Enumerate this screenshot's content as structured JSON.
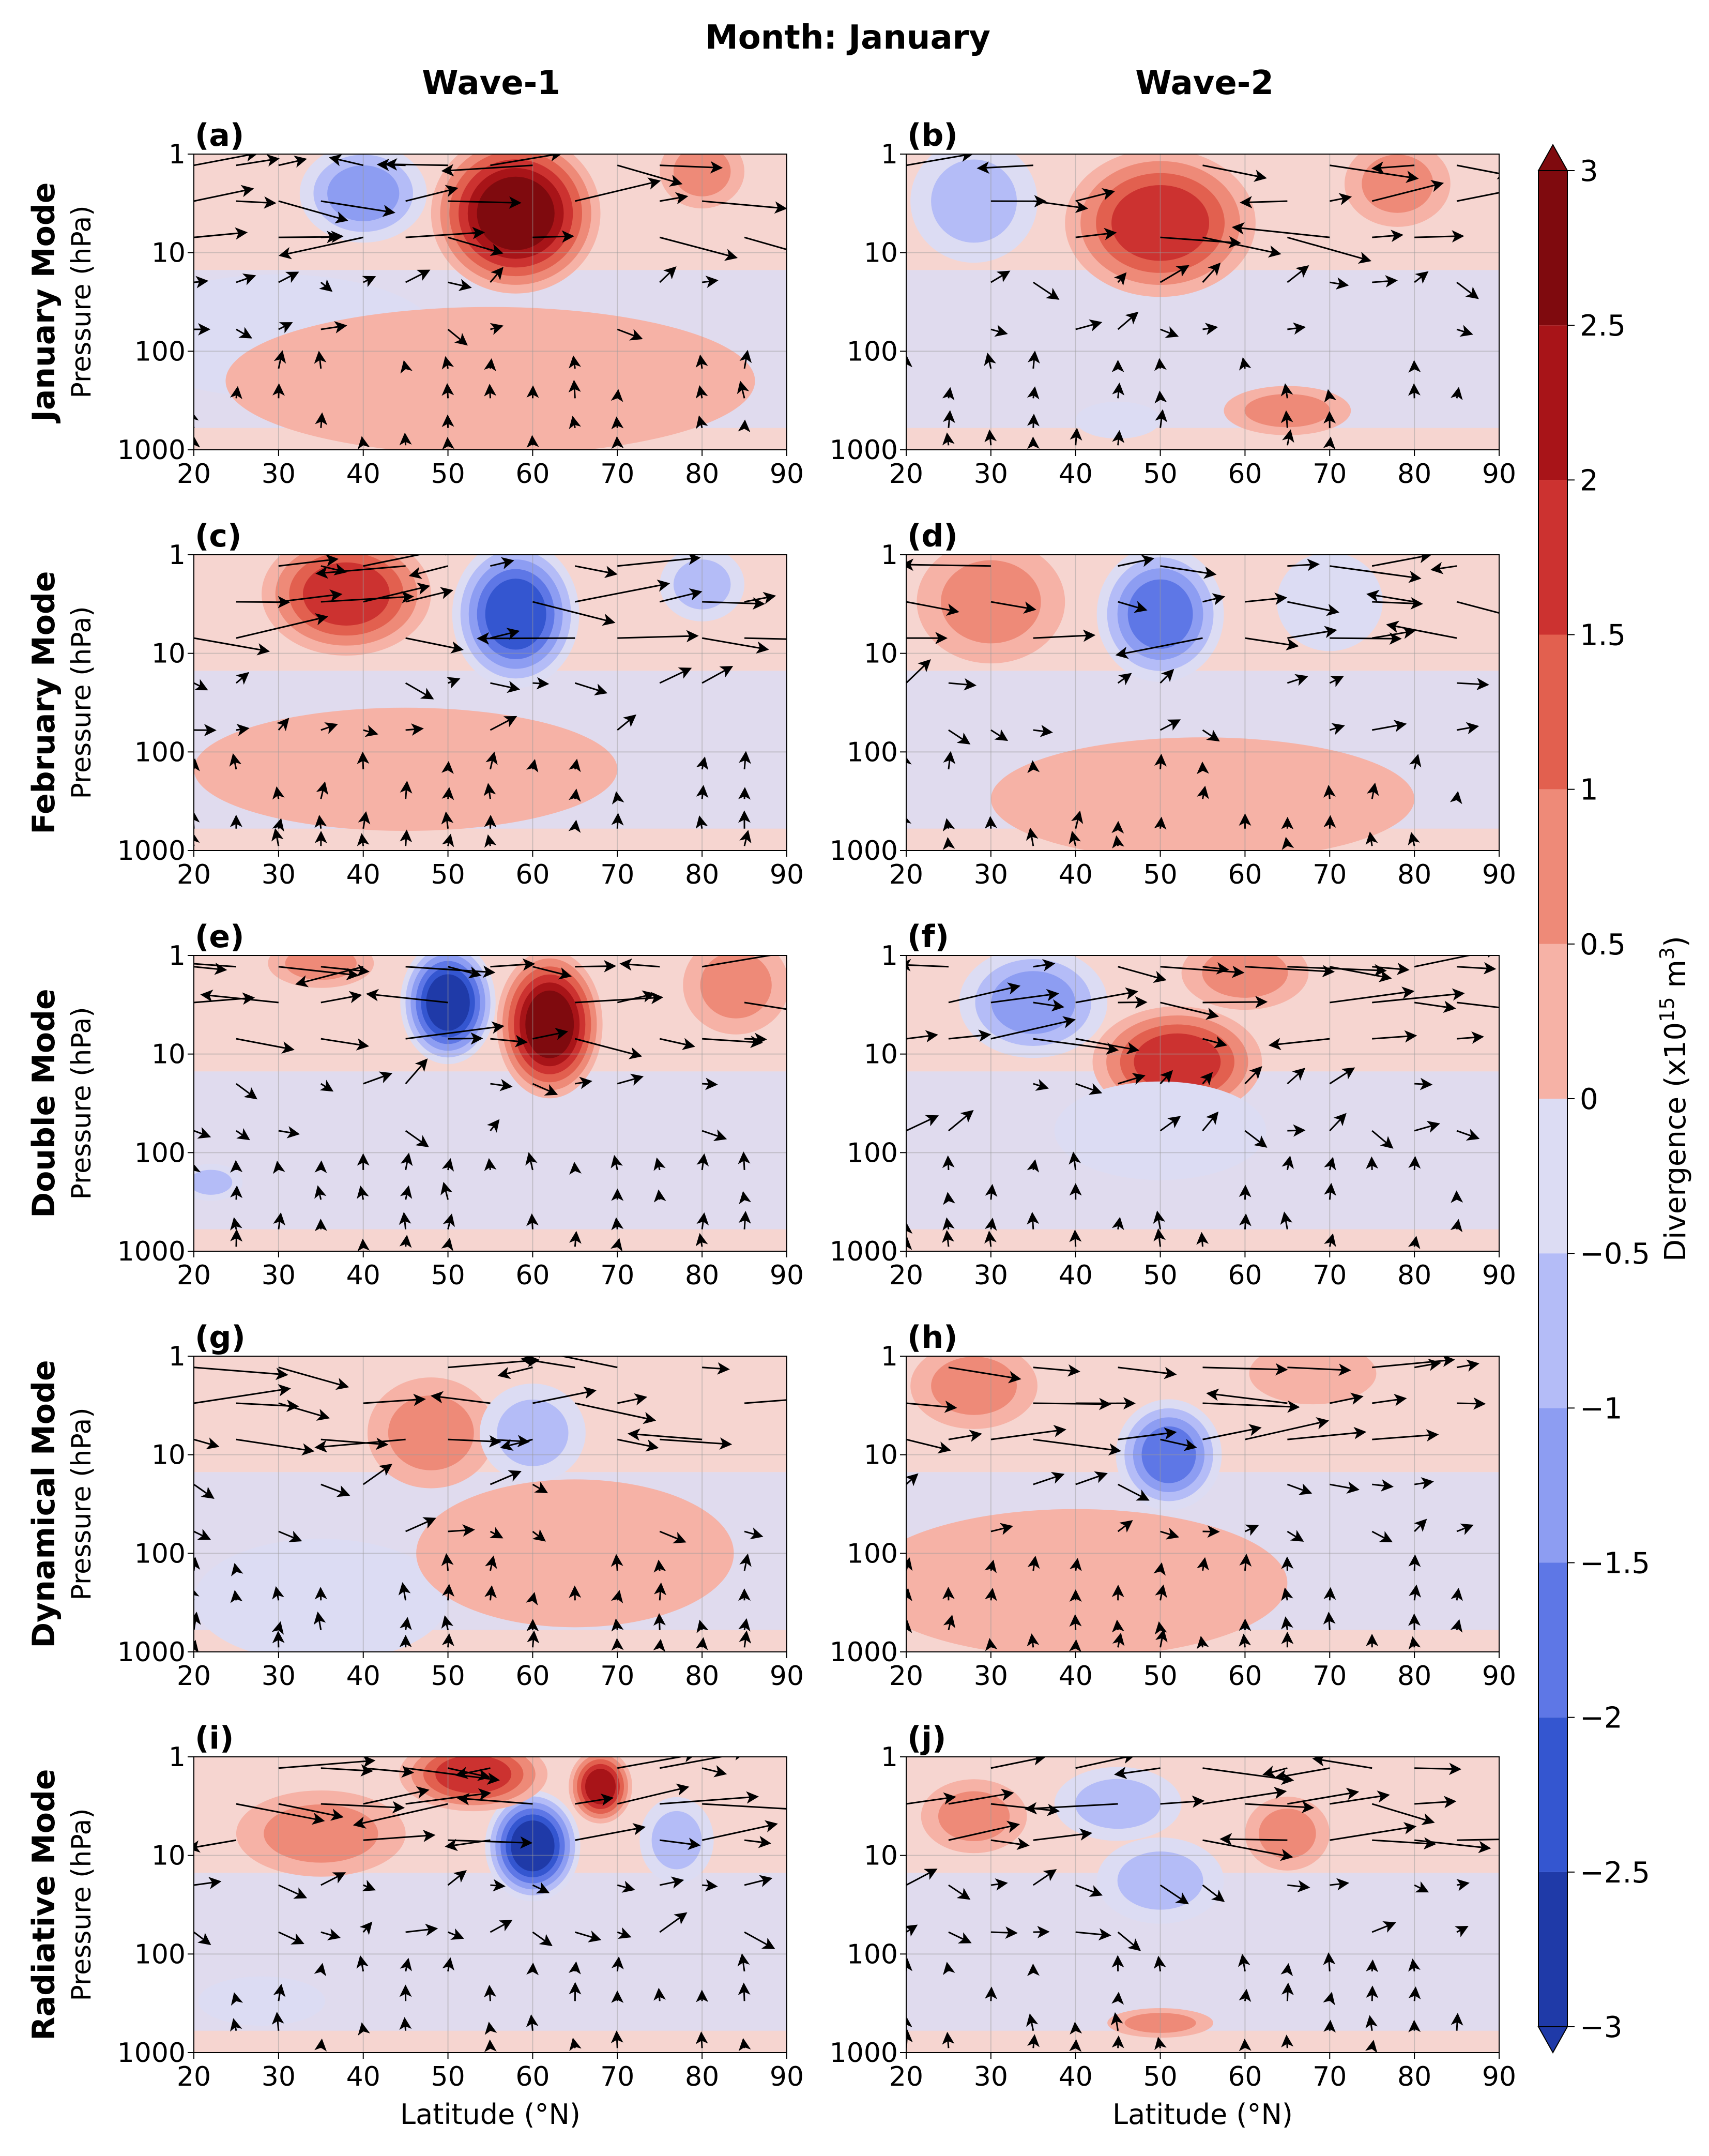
{
  "figure": {
    "title": "Month: January",
    "columns": [
      "Wave-1",
      "Wave-2"
    ],
    "rows": [
      "January Mode",
      "February Mode",
      "Double Mode",
      "Dynamical Mode",
      "Radiative Mode"
    ]
  },
  "colorbar": {
    "label_main": "Divergence (x10",
    "label_exp": "15",
    "label_unit": " m",
    "label_exp2": "3",
    "label_close": ")",
    "ticks": [
      "3",
      "2.5",
      "2",
      "1.5",
      "1",
      "0.5",
      "0",
      "−0.5",
      "−1",
      "−1.5",
      "−2",
      "−2.5",
      "−3"
    ],
    "levels": [
      -3,
      -2.5,
      -2,
      -1.5,
      -1,
      -0.5,
      0,
      0.5,
      1,
      1.5,
      2,
      2.5,
      3
    ],
    "colors": [
      "#1f3aa8",
      "#3456d0",
      "#5e77e6",
      "#8d9df2",
      "#b4bcf7",
      "#dcdcf3",
      "#f6d5d0",
      "#f6b2a6",
      "#ee8a78",
      "#e2604f",
      "#cc3230",
      "#a81418",
      "#7f0a0e"
    ]
  },
  "chart_data": [
    {
      "panel": "(a)",
      "type": "heatmap",
      "title": "",
      "row": "January Mode",
      "column": "Wave-1",
      "xlabel": "",
      "ylabel": "Pressure (hPa)",
      "x_ticks": [
        "20",
        "30",
        "40",
        "50",
        "60",
        "70",
        "80",
        "90"
      ],
      "y_ticks": [
        "1",
        "10",
        "100",
        "1000"
      ],
      "xlim": [
        20,
        90
      ],
      "ylim": [
        1000,
        1
      ],
      "y_scale": "log",
      "features": [
        {
          "lat": 58,
          "p": 4,
          "value": 3.0,
          "wx": 8,
          "wp": 0.65
        },
        {
          "lat": 40,
          "p": 2.5,
          "value": -1.5,
          "wx": 6,
          "wp": 0.4
        },
        {
          "lat": 80,
          "p": 1.5,
          "value": 0.8,
          "wx": 4,
          "wp": 0.3
        },
        {
          "lat": 30,
          "p": 70,
          "value": -0.3,
          "wx": 15,
          "wp": 0.5
        },
        {
          "lat": 55,
          "p": 200,
          "value": 0.2,
          "wx": 25,
          "wp": 0.6
        }
      ]
    },
    {
      "panel": "(b)",
      "type": "heatmap",
      "title": "",
      "row": "January Mode",
      "column": "Wave-2",
      "xlabel": "",
      "ylabel": "",
      "x_ticks": [
        "20",
        "30",
        "40",
        "50",
        "60",
        "70",
        "80",
        "90"
      ],
      "y_ticks": [
        "1",
        "10",
        "100",
        "1000"
      ],
      "xlim": [
        20,
        90
      ],
      "ylim": [
        1000,
        1
      ],
      "y_scale": "log",
      "features": [
        {
          "lat": 50,
          "p": 5,
          "value": 2.0,
          "wx": 9,
          "wp": 0.6
        },
        {
          "lat": 28,
          "p": 3,
          "value": -1.2,
          "wx": 6,
          "wp": 0.5
        },
        {
          "lat": 78,
          "p": 2,
          "value": 0.8,
          "wx": 5,
          "wp": 0.35
        },
        {
          "lat": 65,
          "p": 400,
          "value": 0.8,
          "wx": 6,
          "wp": 0.2
        },
        {
          "lat": 45,
          "p": 500,
          "value": -0.6,
          "wx": 4,
          "wp": 0.15
        }
      ]
    },
    {
      "panel": "(c)",
      "type": "heatmap",
      "title": "",
      "row": "February Mode",
      "column": "Wave-1",
      "xlabel": "",
      "ylabel": "Pressure (hPa)",
      "x_ticks": [
        "20",
        "30",
        "40",
        "50",
        "60",
        "70",
        "80",
        "90"
      ],
      "y_ticks": [
        "1",
        "10",
        "100",
        "1000"
      ],
      "xlim": [
        20,
        90
      ],
      "ylim": [
        1000,
        1
      ],
      "y_scale": "log",
      "features": [
        {
          "lat": 38,
          "p": 2.5,
          "value": 2.0,
          "wx": 8,
          "wp": 0.5
        },
        {
          "lat": 58,
          "p": 4,
          "value": -2.7,
          "wx": 6,
          "wp": 0.6
        },
        {
          "lat": 80,
          "p": 2,
          "value": -0.8,
          "wx": 4,
          "wp": 0.3
        },
        {
          "lat": 45,
          "p": 150,
          "value": 0.3,
          "wx": 20,
          "wp": 0.5
        }
      ]
    },
    {
      "panel": "(d)",
      "type": "heatmap",
      "title": "",
      "row": "February Mode",
      "column": "Wave-2",
      "xlabel": "",
      "ylabel": "",
      "x_ticks": [
        "20",
        "30",
        "40",
        "50",
        "60",
        "70",
        "80",
        "90"
      ],
      "y_ticks": [
        "1",
        "10",
        "100",
        "1000"
      ],
      "xlim": [
        20,
        90
      ],
      "ylim": [
        1000,
        1
      ],
      "y_scale": "log",
      "features": [
        {
          "lat": 50,
          "p": 4,
          "value": -1.8,
          "wx": 6,
          "wp": 0.55
        },
        {
          "lat": 30,
          "p": 3,
          "value": 1.2,
          "wx": 7,
          "wp": 0.5
        },
        {
          "lat": 70,
          "p": 3,
          "value": -0.7,
          "wx": 5,
          "wp": 0.4
        },
        {
          "lat": 55,
          "p": 300,
          "value": 0.3,
          "wx": 20,
          "wp": 0.5
        }
      ]
    },
    {
      "panel": "(e)",
      "type": "heatmap",
      "title": "",
      "row": "Double Mode",
      "column": "Wave-1",
      "xlabel": "",
      "ylabel": "Pressure (hPa)",
      "x_ticks": [
        "20",
        "30",
        "40",
        "50",
        "60",
        "70",
        "80",
        "90"
      ],
      "y_ticks": [
        "1",
        "10",
        "100",
        "1000"
      ],
      "xlim": [
        20,
        90
      ],
      "ylim": [
        1000,
        1
      ],
      "y_scale": "log",
      "features": [
        {
          "lat": 50,
          "p": 3,
          "value": -3.0,
          "wx": 4.5,
          "wp": 0.5
        },
        {
          "lat": 62,
          "p": 5,
          "value": 3.0,
          "wx": 5,
          "wp": 0.6
        },
        {
          "lat": 84,
          "p": 2,
          "value": 1.0,
          "wx": 5,
          "wp": 0.4
        },
        {
          "lat": 22,
          "p": 200,
          "value": -1.0,
          "wx": 3,
          "wp": 0.15
        },
        {
          "lat": 35,
          "p": 1.2,
          "value": 0.8,
          "wx": 5,
          "wp": 0.2
        }
      ]
    },
    {
      "panel": "(f)",
      "type": "heatmap",
      "title": "",
      "row": "Double Mode",
      "column": "Wave-2",
      "xlabel": "",
      "ylabel": "",
      "x_ticks": [
        "20",
        "30",
        "40",
        "50",
        "60",
        "70",
        "80",
        "90"
      ],
      "y_ticks": [
        "1",
        "10",
        "100",
        "1000"
      ],
      "xlim": [
        20,
        90
      ],
      "ylim": [
        1000,
        1
      ],
      "y_scale": "log",
      "features": [
        {
          "lat": 52,
          "p": 12,
          "value": 2.0,
          "wx": 8,
          "wp": 0.45
        },
        {
          "lat": 35,
          "p": 3,
          "value": -1.3,
          "wx": 7,
          "wp": 0.45
        },
        {
          "lat": 60,
          "p": 1.5,
          "value": 1.0,
          "wx": 6,
          "wp": 0.3
        },
        {
          "lat": 50,
          "p": 60,
          "value": -0.6,
          "wx": 10,
          "wp": 0.4
        }
      ]
    },
    {
      "panel": "(g)",
      "type": "heatmap",
      "title": "",
      "row": "Dynamical Mode",
      "column": "Wave-1",
      "xlabel": "",
      "ylabel": "Pressure (hPa)",
      "x_ticks": [
        "20",
        "30",
        "40",
        "50",
        "60",
        "70",
        "80",
        "90"
      ],
      "y_ticks": [
        "1",
        "10",
        "100",
        "1000"
      ],
      "xlim": [
        20,
        90
      ],
      "ylim": [
        1000,
        1
      ],
      "y_scale": "log",
      "features": [
        {
          "lat": 48,
          "p": 6,
          "value": 1.2,
          "wx": 6,
          "wp": 0.45
        },
        {
          "lat": 60,
          "p": 6,
          "value": -1.2,
          "wx": 5,
          "wp": 0.4
        },
        {
          "lat": 35,
          "p": 300,
          "value": -0.6,
          "wx": 12,
          "wp": 0.5
        },
        {
          "lat": 65,
          "p": 100,
          "value": 0.4,
          "wx": 15,
          "wp": 0.6
        }
      ]
    },
    {
      "panel": "(h)",
      "type": "heatmap",
      "title": "",
      "row": "Dynamical Mode",
      "column": "Wave-2",
      "xlabel": "",
      "ylabel": "",
      "x_ticks": [
        "20",
        "30",
        "40",
        "50",
        "60",
        "70",
        "80",
        "90"
      ],
      "y_ticks": [
        "1",
        "10",
        "100",
        "1000"
      ],
      "xlim": [
        20,
        90
      ],
      "ylim": [
        1000,
        1
      ],
      "y_scale": "log",
      "features": [
        {
          "lat": 51,
          "p": 10,
          "value": -1.8,
          "wx": 5,
          "wp": 0.45
        },
        {
          "lat": 28,
          "p": 2,
          "value": 0.9,
          "wx": 6,
          "wp": 0.35
        },
        {
          "lat": 68,
          "p": 1.5,
          "value": 0.7,
          "wx": 6,
          "wp": 0.25
        },
        {
          "lat": 40,
          "p": 200,
          "value": 0.3,
          "wx": 20,
          "wp": 0.6
        }
      ]
    },
    {
      "panel": "(i)",
      "type": "heatmap",
      "title": "",
      "row": "Radiative Mode",
      "column": "Wave-1",
      "xlabel": "Latitude (°N)",
      "ylabel": "Pressure (hPa)",
      "x_ticks": [
        "20",
        "30",
        "40",
        "50",
        "60",
        "70",
        "80",
        "90"
      ],
      "y_ticks": [
        "1",
        "10",
        "100",
        "1000"
      ],
      "xlim": [
        20,
        90
      ],
      "ylim": [
        1000,
        1
      ],
      "y_scale": "log",
      "features": [
        {
          "lat": 60,
          "p": 8,
          "value": -3.0,
          "wx": 4.5,
          "wp": 0.45
        },
        {
          "lat": 53,
          "p": 1.5,
          "value": 2.0,
          "wx": 7,
          "wp": 0.3
        },
        {
          "lat": 68,
          "p": 2,
          "value": 2.5,
          "wx": 3,
          "wp": 0.3
        },
        {
          "lat": 77,
          "p": 7,
          "value": -1.2,
          "wx": 3.5,
          "wp": 0.35
        },
        {
          "lat": 35,
          "p": 6,
          "value": 0.8,
          "wx": 8,
          "wp": 0.35
        },
        {
          "lat": 28,
          "p": 300,
          "value": -0.7,
          "wx": 6,
          "wp": 0.2
        }
      ]
    },
    {
      "panel": "(j)",
      "type": "heatmap",
      "title": "",
      "row": "Radiative Mode",
      "column": "Wave-2",
      "xlabel": "Latitude (°N)",
      "ylabel": "",
      "x_ticks": [
        "20",
        "30",
        "40",
        "50",
        "60",
        "70",
        "80",
        "90"
      ],
      "y_ticks": [
        "1",
        "10",
        "100",
        "1000"
      ],
      "xlim": [
        20,
        90
      ],
      "ylim": [
        1000,
        1
      ],
      "y_scale": "log",
      "features": [
        {
          "lat": 50,
          "p": 18,
          "value": -1.2,
          "wx": 6,
          "wp": 0.35
        },
        {
          "lat": 45,
          "p": 3,
          "value": -0.9,
          "wx": 6,
          "wp": 0.3
        },
        {
          "lat": 65,
          "p": 6,
          "value": 1.0,
          "wx": 4,
          "wp": 0.3
        },
        {
          "lat": 50,
          "p": 500,
          "value": 1.0,
          "wx": 5,
          "wp": 0.12
        },
        {
          "lat": 28,
          "p": 4,
          "value": 0.8,
          "wx": 5,
          "wp": 0.3
        }
      ]
    }
  ]
}
